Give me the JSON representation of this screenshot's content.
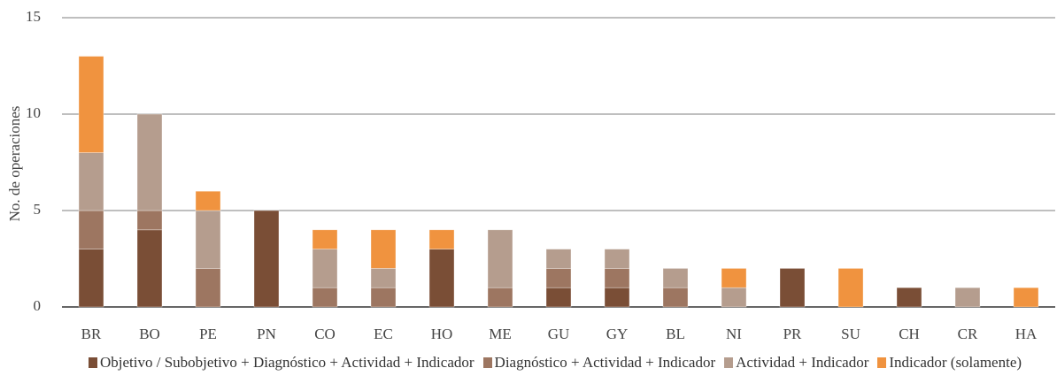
{
  "chart_data": {
    "type": "stacked_bar",
    "ylabel": "No. de operaciones",
    "categories": [
      "BR",
      "BO",
      "PE",
      "PN",
      "CO",
      "EC",
      "HO",
      "ME",
      "GU",
      "GY",
      "BL",
      "NI",
      "PR",
      "SU",
      "CH",
      "CR",
      "HA"
    ],
    "series": [
      {
        "name": "Objetivo / Subobjetivo + Diagnóstico + Actividad + Indicador",
        "color": "#7a4e36",
        "values": [
          3,
          4,
          0,
          5,
          0,
          0,
          3,
          0,
          1,
          1,
          0,
          0,
          2,
          0,
          1,
          0,
          0
        ]
      },
      {
        "name": "Diagnóstico + Actividad + Indicador",
        "color": "#9d7661",
        "values": [
          2,
          1,
          2,
          0,
          1,
          1,
          0,
          1,
          1,
          1,
          1,
          0,
          0,
          0,
          0,
          0,
          0
        ]
      },
      {
        "name": "Actividad + Indicador",
        "color": "#b59d8e",
        "values": [
          3,
          5,
          3,
          0,
          2,
          1,
          0,
          3,
          1,
          1,
          1,
          1,
          0,
          0,
          0,
          1,
          0
        ]
      },
      {
        "name": "Indicador (solamente)",
        "color": "#f0933f",
        "values": [
          5,
          0,
          1,
          0,
          1,
          2,
          1,
          0,
          0,
          0,
          0,
          1,
          0,
          2,
          0,
          0,
          1
        ]
      }
    ],
    "ylim": [
      0,
      15
    ],
    "yticks": [
      0,
      5,
      10,
      15
    ],
    "grid": true
  }
}
